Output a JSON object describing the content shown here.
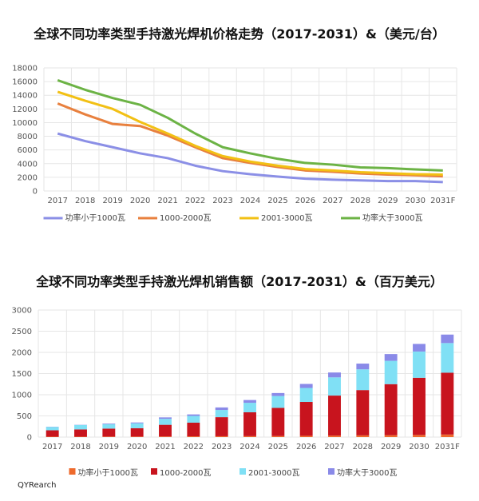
{
  "chart_data": [
    {
      "type": "line",
      "title": "全球不同功率类型手持激光焊机价格走势（2017-2031）&（美元/台）",
      "categories": [
        "2017",
        "2018",
        "2019",
        "2020",
        "2021",
        "2022",
        "2023",
        "2024",
        "2025",
        "2026",
        "2027",
        "2028",
        "2029",
        "2030",
        "2031F"
      ],
      "ylim": [
        0,
        18000
      ],
      "yticks": [
        0,
        2000,
        4000,
        6000,
        8000,
        10000,
        12000,
        14000,
        16000,
        18000
      ],
      "grid": true,
      "legend": "bottom",
      "series": [
        {
          "name": "功率小于1000瓦",
          "color": "#8b8fe6",
          "values": [
            8400,
            7300,
            6400,
            5500,
            4800,
            3700,
            2900,
            2450,
            2100,
            1800,
            1650,
            1550,
            1450,
            1450,
            1300
          ]
        },
        {
          "name": "1000-2000瓦",
          "color": "#e8803e",
          "values": [
            12800,
            11200,
            9800,
            9500,
            8100,
            6400,
            4800,
            4100,
            3500,
            3000,
            2800,
            2550,
            2400,
            2300,
            2150
          ]
        },
        {
          "name": "2001-3000瓦",
          "color": "#f2c014",
          "values": [
            14500,
            13200,
            12000,
            10100,
            8400,
            6600,
            5100,
            4300,
            3700,
            3200,
            3000,
            2750,
            2600,
            2450,
            2400
          ]
        },
        {
          "name": "功率大于3000瓦",
          "color": "#6cb345",
          "values": [
            16200,
            14800,
            13600,
            12600,
            10700,
            8400,
            6400,
            5500,
            4700,
            4100,
            3850,
            3450,
            3350,
            3150,
            3000
          ]
        }
      ]
    },
    {
      "type": "bar",
      "stacked": true,
      "title": "全球不同功率类型手持激光焊机销售额（2017-2031）&（百万美元）",
      "categories": [
        "2017",
        "2018",
        "2019",
        "2020",
        "2021",
        "2022",
        "2023",
        "2024",
        "2025",
        "2026",
        "2027",
        "2028",
        "2029",
        "2030",
        "2031F"
      ],
      "ylim": [
        0,
        3000
      ],
      "yticks": [
        0,
        500,
        1000,
        1500,
        2000,
        2500,
        3000
      ],
      "grid": true,
      "legend": "bottom",
      "series": [
        {
          "name": "功率小于1000瓦",
          "color": "#ee6a2c",
          "values": [
            10,
            10,
            12,
            12,
            15,
            18,
            20,
            22,
            25,
            30,
            35,
            40,
            45,
            50,
            60
          ]
        },
        {
          "name": "1000-2000瓦",
          "color": "#c8141e",
          "values": [
            150,
            170,
            188,
            198,
            275,
            322,
            450,
            563,
            665,
            800,
            945,
            1070,
            1205,
            1350,
            1460
          ]
        },
        {
          "name": "2001-3000瓦",
          "color": "#80e0f5",
          "values": [
            80,
            105,
            105,
            115,
            140,
            160,
            170,
            225,
            280,
            330,
            430,
            490,
            550,
            620,
            700
          ]
        },
        {
          "name": "功率大于3000瓦",
          "color": "#8a8ae8",
          "values": [
            5,
            5,
            15,
            20,
            35,
            35,
            60,
            65,
            70,
            95,
            115,
            135,
            160,
            180,
            200
          ]
        }
      ]
    }
  ],
  "source": "QYRearch"
}
